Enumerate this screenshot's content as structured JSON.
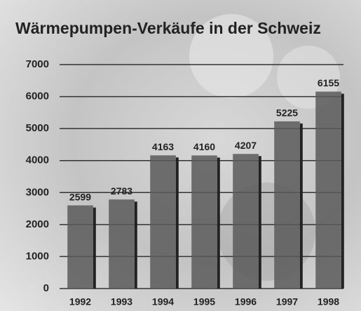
{
  "chart_data": {
    "type": "bar",
    "title": "Wärmepumpen-Verkäufe in der Schweiz",
    "categories": [
      "1992",
      "1993",
      "1994",
      "1995",
      "1996",
      "1997",
      "1998"
    ],
    "values": [
      2599,
      2783,
      4163,
      4160,
      4207,
      5225,
      6155
    ],
    "color": "#5a5a5a",
    "ylim": [
      0,
      7000
    ],
    "yticks": [
      0,
      1000,
      2000,
      3000,
      4000,
      5000,
      6000,
      7000
    ],
    "grid": true
  }
}
